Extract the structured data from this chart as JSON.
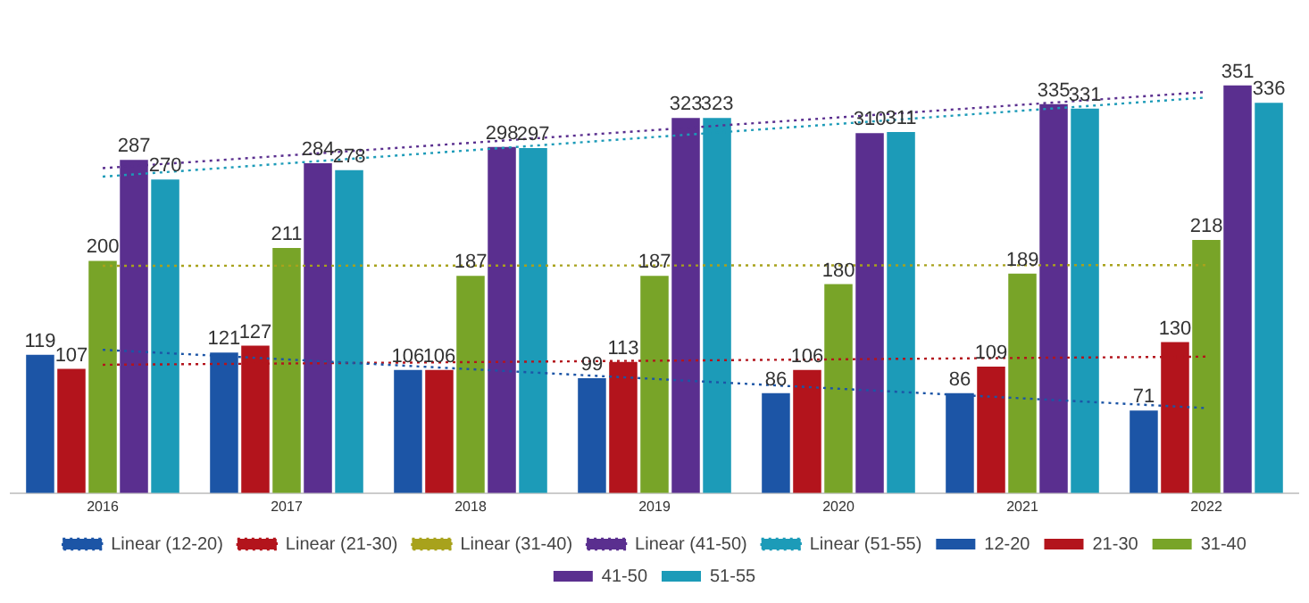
{
  "chart_data": {
    "type": "bar",
    "categories": [
      "2016",
      "2017",
      "2018",
      "2019",
      "2020",
      "2021",
      "2022"
    ],
    "series": [
      {
        "name": "12-20",
        "color": "#1c55a6",
        "values": [
          119,
          121,
          106,
          99,
          86,
          86,
          71
        ],
        "value_labels": [
          "119",
          "121",
          "106",
          "99",
          "86",
          "86",
          "71"
        ]
      },
      {
        "name": "21-30",
        "color": "#b3141c",
        "values": [
          107,
          127,
          106,
          113,
          106,
          109,
          130
        ],
        "value_labels": [
          "107",
          "127",
          "106",
          "113",
          "106",
          "109",
          "130"
        ]
      },
      {
        "name": "31-40",
        "color": "#78a428",
        "values": [
          200,
          211,
          187,
          187,
          180,
          189,
          218
        ],
        "value_labels": [
          "200",
          "211",
          "187",
          "187",
          "180",
          "189",
          "218"
        ]
      },
      {
        "name": "41-50",
        "color": "#5a2f8f",
        "values": [
          287,
          284,
          298,
          323,
          310,
          335,
          351
        ],
        "value_labels": [
          "287",
          "284",
          "298",
          "323",
          "310",
          "335",
          "351"
        ]
      },
      {
        "name": "51-55",
        "color": "#1c9bb8",
        "values": [
          270,
          278,
          297,
          323,
          311,
          331,
          336
        ],
        "value_labels": [
          "270",
          "278",
          "297",
          "323",
          "311",
          "331",
          "336"
        ]
      },
      {
        "name": "Linear (12-20)",
        "type": "line",
        "line_style": "dotted",
        "marker": "none",
        "color": "#1c55a6",
        "values": [
          123.4,
          115.1,
          106.7,
          98.3,
          89.9,
          81.6,
          73.2
        ]
      },
      {
        "name": "Linear (21-30)",
        "type": "line",
        "line_style": "dotted",
        "marker": "none",
        "color": "#b3141c",
        "values": [
          110.5,
          111.6,
          112.8,
          114,
          115.2,
          116.4,
          117.5
        ]
      },
      {
        "name": "Linear (31-40)",
        "type": "line",
        "line_style": "dotted",
        "marker": "none",
        "color": "#a8a21c",
        "values": [
          195.7,
          195.8,
          195.9,
          196,
          196.1,
          196.2,
          196.3
        ]
      },
      {
        "name": "Linear (41-50)",
        "type": "line",
        "line_style": "dotted",
        "marker": "none",
        "color": "#5a2f8f",
        "values": [
          279.8,
          290.7,
          301.6,
          312.6,
          323.5,
          334.4,
          345.4
        ]
      },
      {
        "name": "Linear (51-55)",
        "type": "line",
        "line_style": "dotted",
        "marker": "none",
        "color": "#1c9bb8",
        "values": [
          272.5,
          283.9,
          295.2,
          306.6,
          317.9,
          329.3,
          340.6
        ]
      }
    ],
    "tick_labels": "x",
    "grid": false,
    "legend": "bottom"
  }
}
